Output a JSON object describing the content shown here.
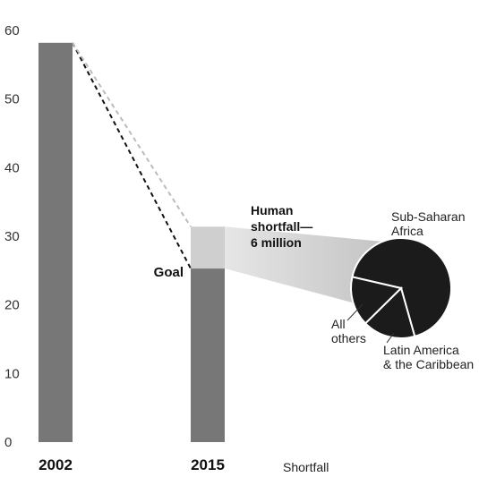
{
  "chart_data": [
    {
      "type": "bar",
      "categories": [
        "2002",
        "2015"
      ],
      "series": [
        {
          "name": "",
          "values": [
            58.2,
            25.3
          ]
        },
        {
          "name": "Shortfall",
          "values": [
            0,
            6.1
          ]
        }
      ],
      "ylim": [
        0,
        60
      ],
      "yticks": [
        0,
        10,
        20,
        30,
        40,
        50,
        60
      ],
      "ytick_labels": [
        "0",
        "10",
        "20",
        "30",
        "40",
        "50",
        "60"
      ],
      "goal_label": "Goal",
      "annotation": [
        "Human",
        "shortfall—",
        "6 million"
      ],
      "legend_label": "Shortfall",
      "colors": {
        "bar": "#777777",
        "shortfall": "#cfcfcf",
        "goal_line": "#111111",
        "projection_line": "#bbbbbb"
      }
    },
    {
      "type": "pie",
      "slices": [
        {
          "label": [
            "Sub-Saharan",
            "Africa"
          ],
          "value": 67
        },
        {
          "label": [
            "Latin America",
            "& the Caribbean"
          ],
          "value": 17
        },
        {
          "label": [
            "All",
            "others"
          ],
          "value": 16
        }
      ],
      "color": "#1b1b1b",
      "edge_color": "#ffffff"
    }
  ]
}
